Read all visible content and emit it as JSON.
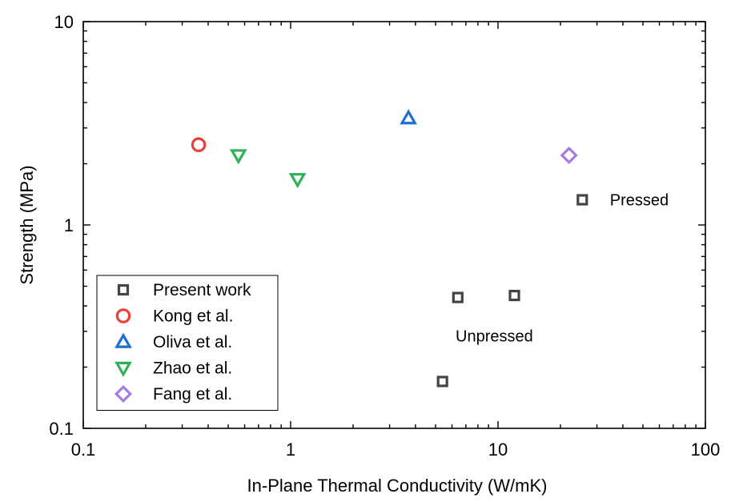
{
  "chart_data": {
    "type": "scatter",
    "xscale": "log",
    "yscale": "log",
    "xlim": [
      0.1,
      100
    ],
    "ylim": [
      0.1,
      10
    ],
    "xlabel": "In-Plane Thermal Conductivity (W/mK)",
    "ylabel": "Strength (MPa)",
    "xticks": [
      "0.1",
      "1",
      "10",
      "100"
    ],
    "yticks": [
      "0.1",
      "1",
      "10"
    ],
    "grid": false,
    "legend_position": "bottom-left",
    "series": [
      {
        "name": "Present work",
        "marker": "square",
        "color": "#444444",
        "points": [
          {
            "x": 5.4,
            "y": 0.17
          },
          {
            "x": 6.4,
            "y": 0.44
          },
          {
            "x": 12.0,
            "y": 0.45
          },
          {
            "x": 25.5,
            "y": 1.33
          }
        ]
      },
      {
        "name": "Kong et al.",
        "marker": "circle",
        "color": "#e8403a",
        "points": [
          {
            "x": 0.36,
            "y": 2.48
          }
        ]
      },
      {
        "name": "Oliva et al.",
        "marker": "triangle-up",
        "color": "#1f6fd1",
        "points": [
          {
            "x": 3.7,
            "y": 3.35
          }
        ]
      },
      {
        "name": "Zhao et al.",
        "marker": "triangle-down",
        "color": "#2eaf58",
        "points": [
          {
            "x": 0.56,
            "y": 2.2
          },
          {
            "x": 1.08,
            "y": 1.68
          }
        ]
      },
      {
        "name": "Fang et al.",
        "marker": "diamond",
        "color": "#a97ae0",
        "points": [
          {
            "x": 22.0,
            "y": 2.2
          }
        ]
      }
    ],
    "annotations": [
      {
        "text": "Pressed",
        "x": 48,
        "y": 1.33
      },
      {
        "text": "Unpressed",
        "x": 9.6,
        "y": 0.285
      }
    ]
  }
}
